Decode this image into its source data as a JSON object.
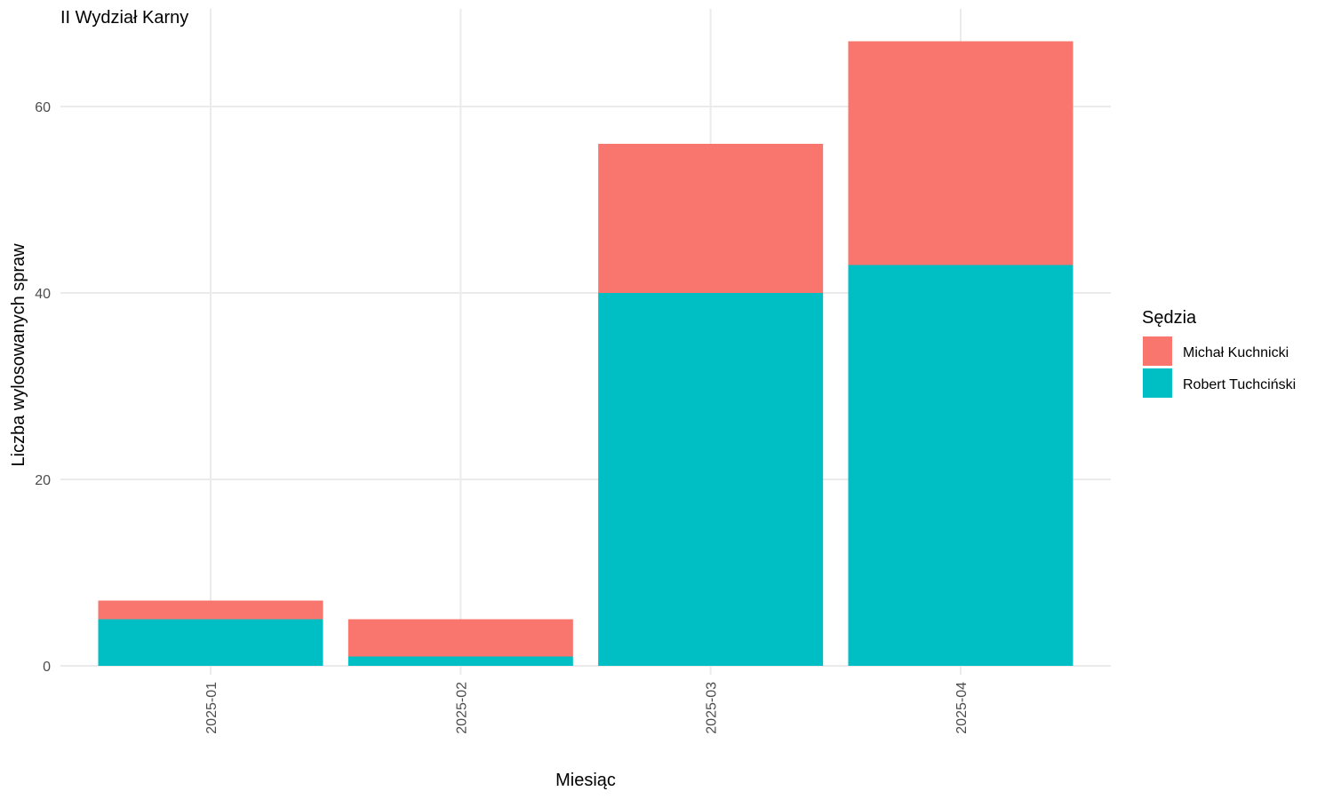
{
  "chart_data": {
    "type": "bar",
    "stacked": true,
    "title": "II Wydział Karny",
    "xlabel": "Miesiąc",
    "ylabel": "Liczba wylosowanych spraw",
    "categories": [
      "2025-01",
      "2025-02",
      "2025-03",
      "2025-04"
    ],
    "series": [
      {
        "name": "Robert Tuchciński",
        "color": "#00BFC4",
        "values": [
          5,
          1,
          40,
          43
        ]
      },
      {
        "name": "Michał Kuchnicki",
        "color": "#F8766D",
        "values": [
          2,
          4,
          16,
          24
        ]
      }
    ],
    "ylim": [
      0,
      67
    ],
    "yticks": [
      0,
      20,
      40,
      60
    ],
    "grid": true,
    "legend": {
      "title": "Sędzia",
      "position": "right",
      "entries": [
        "Michał Kuchnicki",
        "Robert Tuchciński"
      ]
    }
  }
}
